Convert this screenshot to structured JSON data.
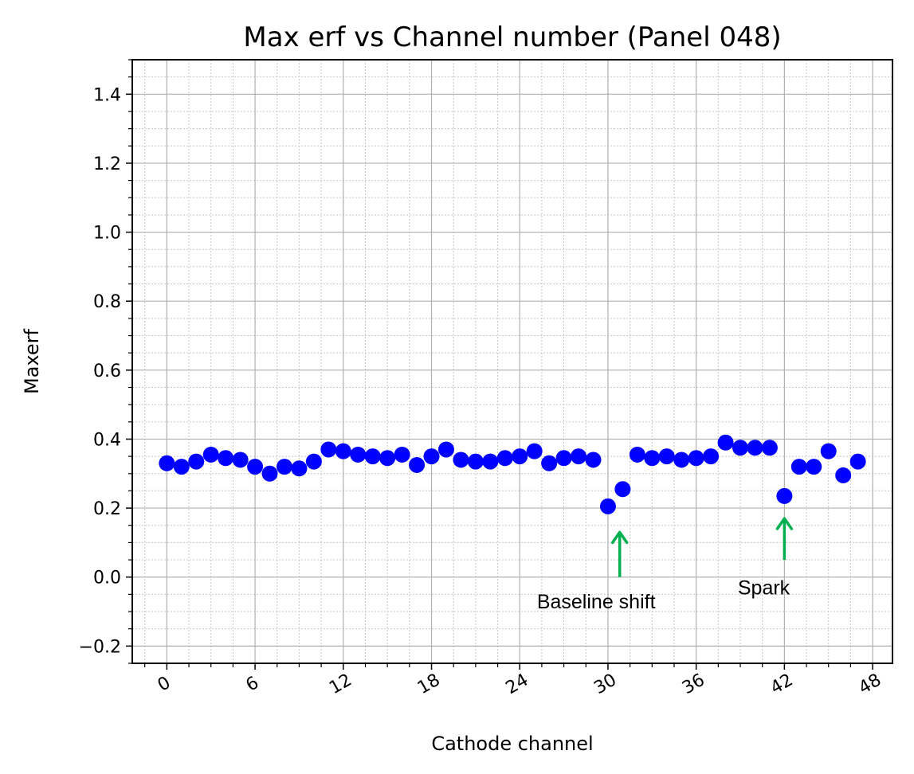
{
  "chart_data": {
    "type": "scatter",
    "title": "Max erf vs Channel number (Panel 048)",
    "xlabel": "Cathode channel",
    "ylabel": "Maxerf",
    "xlim": [
      -2.35,
      49.35
    ],
    "ylim": [
      -0.25,
      1.5
    ],
    "xticks": [
      0,
      6,
      12,
      18,
      24,
      30,
      36,
      42,
      48
    ],
    "xtick_labels": [
      "0",
      "6",
      "12",
      "18",
      "24",
      "30",
      "36",
      "42",
      "48"
    ],
    "yticks": [
      -0.2,
      0.0,
      0.2,
      0.4,
      0.6,
      0.8,
      1.0,
      1.2,
      1.4
    ],
    "ytick_labels": [
      "−0.2",
      "0.0",
      "0.2",
      "0.4",
      "0.6",
      "0.8",
      "1.0",
      "1.2",
      "1.4"
    ],
    "grid": true,
    "marker_color": "#0000ff",
    "arrow_color": "#00b050",
    "series": [
      {
        "x": [
          0,
          1,
          2,
          3,
          4,
          5,
          6,
          7,
          8,
          9,
          10,
          11,
          12,
          13,
          14,
          15,
          16,
          17,
          18,
          19,
          20,
          21,
          22,
          23,
          24,
          25,
          26,
          27,
          28,
          29,
          30,
          31,
          32,
          33,
          34,
          35,
          36,
          37,
          38,
          39,
          40,
          41,
          42,
          43,
          44,
          45,
          46,
          47
        ],
        "y": [
          0.33,
          0.32,
          0.335,
          0.355,
          0.345,
          0.34,
          0.32,
          0.3,
          0.32,
          0.315,
          0.335,
          0.37,
          0.365,
          0.355,
          0.35,
          0.345,
          0.355,
          0.325,
          0.35,
          0.37,
          0.34,
          0.335,
          0.335,
          0.345,
          0.35,
          0.365,
          0.33,
          0.345,
          0.35,
          0.34,
          0.205,
          0.255,
          0.355,
          0.345,
          0.35,
          0.34,
          0.345,
          0.35,
          0.39,
          0.375,
          0.375,
          0.375,
          0.235,
          0.32,
          0.32,
          0.365,
          0.295,
          0.335
        ]
      }
    ],
    "annotations": [
      {
        "text": "Baseline shift",
        "arrow_x": 30.8,
        "arrow_y0": 0.0,
        "arrow_y1": 0.13,
        "text_x": 29.2,
        "text_y": -0.07
      },
      {
        "text": "Spark",
        "arrow_x": 42.0,
        "arrow_y0": 0.05,
        "arrow_y1": 0.17,
        "text_x": 40.6,
        "text_y": -0.03
      }
    ]
  }
}
